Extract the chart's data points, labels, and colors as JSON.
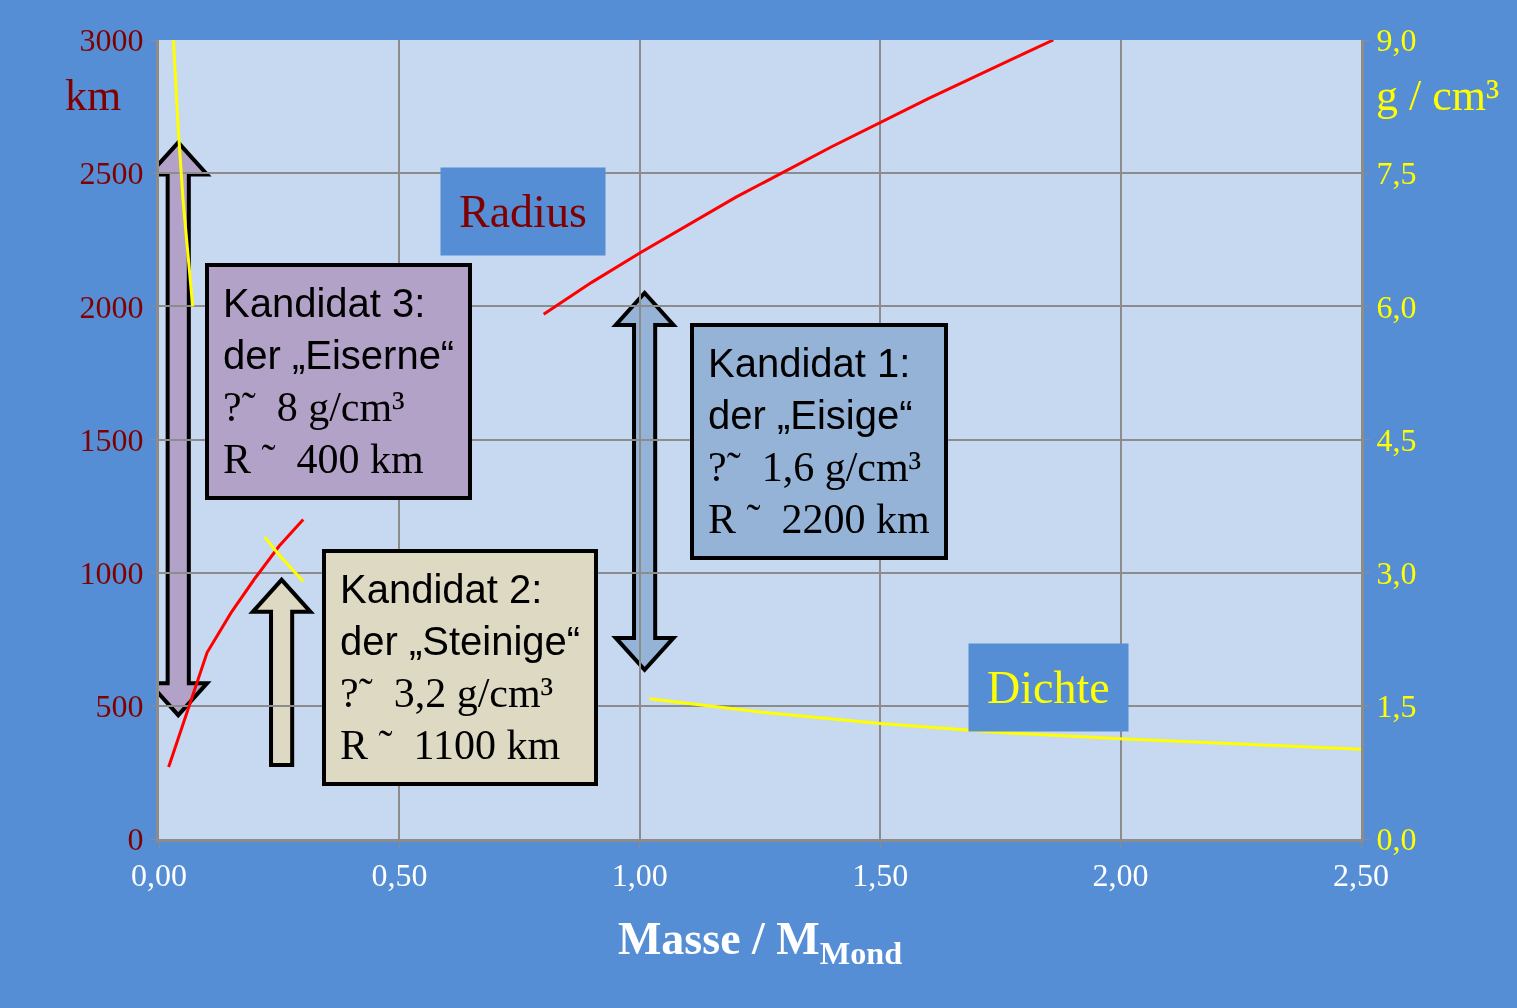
{
  "chart_data": {
    "type": "line",
    "xlabel": "Masse / M$_{Mond}$",
    "ylabel": "km",
    "y2label": "g / cm³",
    "xlim": [
      0,
      2.5
    ],
    "xticks": [
      {
        "value": 0,
        "label": "0,00"
      },
      {
        "value": 0.5,
        "label": "0,50"
      },
      {
        "value": 1,
        "label": "1,00"
      },
      {
        "value": 1.5,
        "label": "1,50"
      },
      {
        "value": 2,
        "label": "2,00"
      },
      {
        "value": 2.5,
        "label": "2,50"
      }
    ],
    "ylim": [
      0,
      3000
    ],
    "yticks": [
      0,
      500,
      1000,
      1500,
      2000,
      2500,
      3000
    ],
    "y2lim": [
      0,
      9
    ],
    "y2ticks": [
      {
        "value": 0,
        "label": "0,0"
      },
      {
        "value": 1.5,
        "label": "1,5"
      },
      {
        "value": 3,
        "label": "3,0"
      },
      {
        "value": 4.5,
        "label": "4,5"
      },
      {
        "value": 6,
        "label": "6,0"
      },
      {
        "value": 7.5,
        "label": "7,5"
      },
      {
        "value": 9,
        "label": "9,0"
      }
    ],
    "grid": true,
    "legend": false,
    "marker": "none",
    "line_style": "solid",
    "series": [
      {
        "name": "Radius",
        "color": "#ff0000",
        "x": [
          0.02,
          0.1,
          0.15,
          0.2,
          0.25,
          0.3,
          0.4,
          0.5,
          0.6,
          0.7,
          0.8,
          0.9,
          1.0,
          1.2,
          1.4,
          1.6,
          1.8,
          1.86
        ],
        "values": [
          270,
          700,
          850,
          980,
          1100,
          1200,
          null,
          null,
          null,
          null,
          1970,
          2090,
          2200,
          2410,
          2600,
          2780,
          2950,
          3000
        ]
      },
      {
        "name": "Dichte",
        "color": "#ffff00",
        "axis": "y2",
        "x": [
          0.03,
          0.04,
          0.05,
          0.07,
          0.1,
          0.15,
          0.22,
          0.25,
          0.3,
          0.4,
          0.5,
          0.7,
          1.02,
          1.25,
          1.5,
          1.75,
          2.0,
          2.25,
          2.5
        ],
        "values": [
          9.0,
          8.0,
          7.2,
          6.0,
          null,
          null,
          3.4,
          3.2,
          2.9,
          null,
          null,
          null,
          1.58,
          1.43,
          1.3,
          1.2,
          1.13,
          1.07,
          1.01
        ]
      }
    ],
    "annotations": [
      "Kandidat 3:\nder „Eiserne“\n?˜  8 g/cm³\nR ˜  400 km",
      "Kandidat 2:\nder „Steinige“\n?˜  3,2 g/cm³\nR ˜  1100 km",
      "Kandidat 1:\nder „Eisige“\n?˜  1,6 g/cm³\nR ˜  2200 km"
    ]
  }
}
